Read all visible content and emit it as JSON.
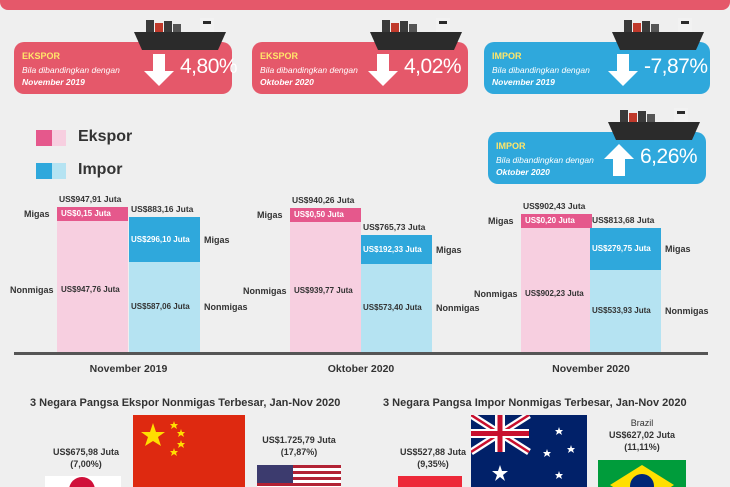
{
  "cards": [
    {
      "title": "EKSPOR",
      "line1": "Bila dibandingkan dengan",
      "line2": "November 2019",
      "value": "4,80%",
      "direction": "down"
    },
    {
      "title": "EKSPOR",
      "line1": "Bila dibandingkan dengan",
      "line2": "Oktober 2020",
      "value": "4,02%",
      "direction": "down"
    },
    {
      "title": "IMPOR",
      "line1": "Bila dibandingkan dengan",
      "line2": "November 2019",
      "value": "-7,87%",
      "direction": "down"
    },
    {
      "title": "IMPOR",
      "line1": "Bila dibandingkan dengan",
      "line2": "Oktober 2020",
      "value": "6,26%",
      "direction": "up"
    }
  ],
  "colors": {
    "export_accent": "#e5586a",
    "import_accent": "#2fa8dc",
    "export_migas": "#e5588c",
    "export_nonmigas": "#f7cfe0",
    "import_migas": "#2fa8dc",
    "import_nonmigas": "#b5e3f2",
    "arrow_yellow": "#ffe66a"
  },
  "legend": {
    "export": "Ekspor",
    "import": "Impor"
  },
  "chart_data": {
    "type": "bar",
    "categories": [
      "November 2019",
      "Oktober 2020",
      "November 2020"
    ],
    "series": [
      {
        "name": "Ekspor",
        "totals": [
          "US$947,91 Juta",
          "US$940,26 Juta",
          "US$902,43 Juta"
        ],
        "migas": [
          "US$0,15 Juta",
          "US$0,50 Juta",
          "US$0,20 Juta"
        ],
        "nonmigas": [
          "US$947,76 Juta",
          "US$939,77 Juta",
          "US$902,23 Juta"
        ],
        "values": [
          947.91,
          940.26,
          902.43
        ],
        "migas_values": [
          0.15,
          0.5,
          0.2
        ]
      },
      {
        "name": "Impor",
        "totals": [
          "US$883,16 Juta",
          "US$765,73 Juta",
          "US$813,68 Juta"
        ],
        "migas": [
          "US$296,10 Juta",
          "US$192,33 Juta",
          "US$279,75 Juta"
        ],
        "nonmigas": [
          "US$587,06 Juta",
          "US$573,40 Juta",
          "US$533,93 Juta"
        ],
        "values": [
          883.16,
          765.73,
          813.68
        ],
        "migas_values": [
          296.1,
          192.33,
          279.75
        ]
      }
    ],
    "migas_label": "Migas",
    "nonmigas_label": "Nonmigas"
  },
  "bottom": {
    "export_title": "3 Negara Pangsa Ekspor Nonmigas Terbesar, Jan-Nov 2020",
    "import_title": "3 Negara Pangsa Impor Nonmigas Terbesar, Jan-Nov 2020",
    "export_countries": [
      {
        "value": "US$675,98 Juta",
        "share": "(7,00%)"
      },
      {
        "value": "US$1.725,79 Juta",
        "share": "(17,87%)"
      }
    ],
    "import_countries": [
      {
        "value": "US$527,88 Juta",
        "share": "(9,35%)"
      },
      {
        "name": "Brazil",
        "value": "US$627,02 Juta",
        "share": "(11,11%)"
      }
    ]
  }
}
